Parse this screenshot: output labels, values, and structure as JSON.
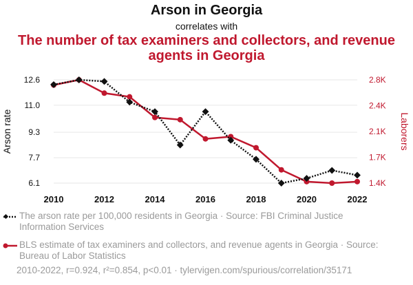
{
  "header": {
    "title_top": "Arson in Georgia",
    "connector": "correlates with",
    "title_bottom": "The number of tax examiners and collectors, and revenue agents in Georgia"
  },
  "colors": {
    "series1": "#111111",
    "series2": "#c0182e",
    "muted": "#9a9a9a"
  },
  "chart_data": {
    "type": "line",
    "x": [
      2010,
      2011,
      2012,
      2013,
      2014,
      2015,
      2016,
      2017,
      2018,
      2019,
      2020,
      2021,
      2022
    ],
    "xticks": [
      "2010",
      "2012",
      "2014",
      "2016",
      "2018",
      "2020",
      "2022"
    ],
    "xtick_values": [
      2010,
      2012,
      2014,
      2016,
      2018,
      2020,
      2022
    ],
    "xlim": [
      2010,
      2022
    ],
    "series": [
      {
        "name": "Arson rate",
        "axis": "left",
        "style": "dotted",
        "marker": "diamond",
        "values": [
          12.3,
          12.6,
          12.5,
          11.2,
          10.6,
          8.5,
          10.6,
          8.8,
          7.6,
          6.1,
          6.4,
          6.9,
          6.6
        ]
      },
      {
        "name": "Laborers",
        "axis": "right",
        "style": "solid",
        "marker": "circle",
        "values": [
          2730,
          2800,
          2620,
          2570,
          2290,
          2260,
          2000,
          2030,
          1880,
          1580,
          1420,
          1400,
          1420
        ]
      }
    ],
    "y_left": {
      "label": "Arson rate",
      "ticks": [
        "6.1",
        "7.7",
        "9.3",
        "11.0",
        "12.6"
      ],
      "tick_values": [
        6.1,
        7.7,
        9.3,
        11.0,
        12.6
      ],
      "ylim": [
        6.1,
        12.6
      ]
    },
    "y_right": {
      "label": "Laborers",
      "ticks": [
        "1.4K",
        "1.7K",
        "2.1K",
        "2.4K",
        "2.8K"
      ],
      "tick_values": [
        1400,
        1750,
        2100,
        2450,
        2800
      ],
      "ylim": [
        1400,
        2800
      ]
    }
  },
  "legend": {
    "series1": "The arson rate per 100,000 residents in Georgia · Source: FBI Criminal Justice Information Services",
    "series2": "BLS estimate of tax examiners and collectors, and revenue agents in Georgia · Source: Bureau of Labor Statistics"
  },
  "footer": "2010-2022, r=0.924, r²=0.854, p<0.01 · tylervigen.com/spurious/correlation/35171"
}
